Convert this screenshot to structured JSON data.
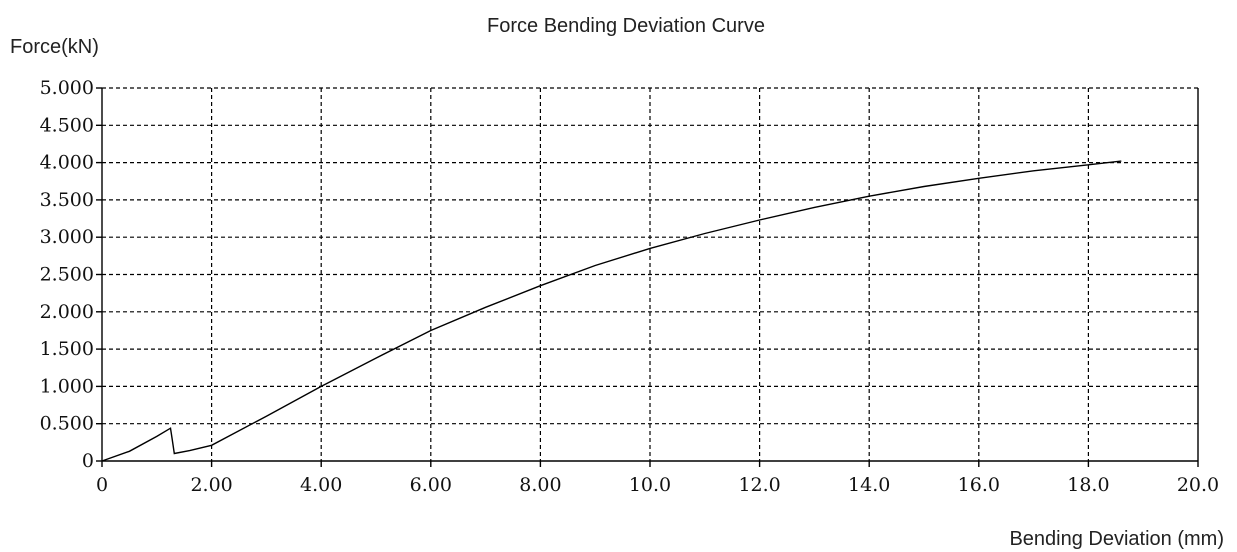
{
  "chart_data": {
    "type": "line",
    "title": "Force Bending Deviation Curve",
    "xlabel": "Bending Deviation (mm)",
    "ylabel": "Force(kN)",
    "xlim": [
      0,
      20
    ],
    "ylim": [
      0,
      5
    ],
    "grid": true,
    "x_ticks": [
      {
        "value": 0,
        "label": "0"
      },
      {
        "value": 2,
        "label": "2.00"
      },
      {
        "value": 4,
        "label": "4.00"
      },
      {
        "value": 6,
        "label": "6.00"
      },
      {
        "value": 8,
        "label": "8.00"
      },
      {
        "value": 10,
        "label": "10.0"
      },
      {
        "value": 12,
        "label": "12.0"
      },
      {
        "value": 14,
        "label": "14.0"
      },
      {
        "value": 16,
        "label": "16.0"
      },
      {
        "value": 18,
        "label": "18.0"
      },
      {
        "value": 20,
        "label": "20.0"
      }
    ],
    "y_ticks": [
      {
        "value": 0,
        "label": "0"
      },
      {
        "value": 0.5,
        "label": "0.500"
      },
      {
        "value": 1,
        "label": "1.000"
      },
      {
        "value": 1.5,
        "label": "1.500"
      },
      {
        "value": 2,
        "label": "2.000"
      },
      {
        "value": 2.5,
        "label": "2.500"
      },
      {
        "value": 3,
        "label": "3.000"
      },
      {
        "value": 3.5,
        "label": "3.500"
      },
      {
        "value": 4,
        "label": "4.000"
      },
      {
        "value": 4.5,
        "label": "4.500"
      },
      {
        "value": 5,
        "label": "5.000"
      }
    ],
    "series": [
      {
        "x": [
          0,
          0.5,
          1.0,
          1.25,
          1.28,
          1.32,
          1.6,
          2.0,
          3.0,
          4.0,
          5.0,
          6.0,
          7.0,
          8.0,
          9.0,
          10.0,
          11.0,
          12.0,
          13.0,
          14.0,
          15.0,
          16.0,
          17.0,
          18.0,
          18.6
        ],
        "y": [
          0,
          0.13,
          0.33,
          0.44,
          0.3,
          0.1,
          0.14,
          0.21,
          0.6,
          1.0,
          1.38,
          1.75,
          2.06,
          2.35,
          2.62,
          2.85,
          3.05,
          3.23,
          3.4,
          3.55,
          3.68,
          3.79,
          3.89,
          3.97,
          4.02
        ]
      }
    ]
  }
}
